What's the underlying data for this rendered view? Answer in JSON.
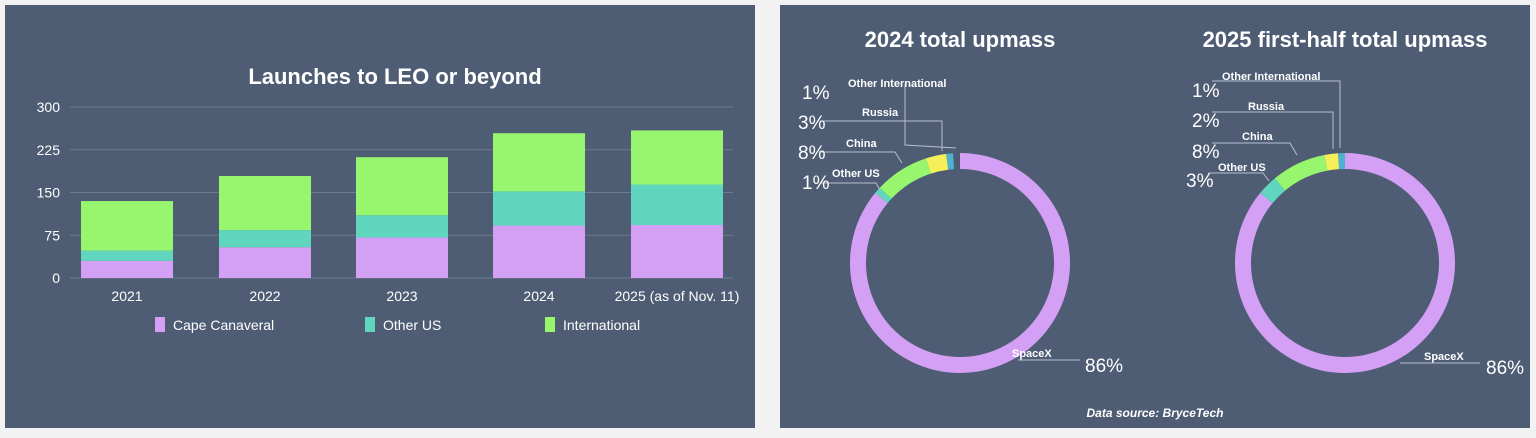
{
  "colors": {
    "cape": "#d4a0f5",
    "otherus": "#5fd6bd",
    "intl": "#98f56e",
    "russia": "#f5f05a",
    "otherintl": "#4fb0d0",
    "bg": "#4e5c74"
  },
  "chart_data": [
    {
      "type": "bar",
      "stacked": true,
      "title": "Launches to LEO or beyond",
      "categories": [
        "2021",
        "2022",
        "2023",
        "2024",
        "2025 (as of Nov. 11)"
      ],
      "series": [
        {
          "name": "Cape Canaveral",
          "values": [
            30,
            54,
            71,
            92,
            93
          ]
        },
        {
          "name": "Other US",
          "values": [
            18,
            30,
            39,
            60,
            71
          ]
        },
        {
          "name": "International",
          "values": [
            87,
            95,
            102,
            102,
            95
          ]
        }
      ],
      "yticks": [
        "0",
        "75",
        "150",
        "225",
        "300"
      ],
      "ylim": [
        0,
        300
      ],
      "grid": true,
      "legend": "bottom"
    },
    {
      "type": "pie",
      "donut": true,
      "title": "2024 total upmass",
      "slices": [
        {
          "label": "SpaceX",
          "pct": "86%",
          "value": 86
        },
        {
          "label": "Other US",
          "pct": "1%",
          "value": 1
        },
        {
          "label": "China",
          "pct": "8%",
          "value": 8
        },
        {
          "label": "Russia",
          "pct": "3%",
          "value": 3
        },
        {
          "label": "Other International",
          "pct": "1%",
          "value": 1
        }
      ]
    },
    {
      "type": "pie",
      "donut": true,
      "title": "2025 first-half total upmass",
      "slices": [
        {
          "label": "SpaceX",
          "pct": "86%",
          "value": 86
        },
        {
          "label": "Other US",
          "pct": "3%",
          "value": 3
        },
        {
          "label": "China",
          "pct": "8%",
          "value": 8
        },
        {
          "label": "Russia",
          "pct": "2%",
          "value": 2
        },
        {
          "label": "Other International",
          "pct": "1%",
          "value": 1
        }
      ]
    }
  ],
  "source": "Data source: BryceTech"
}
